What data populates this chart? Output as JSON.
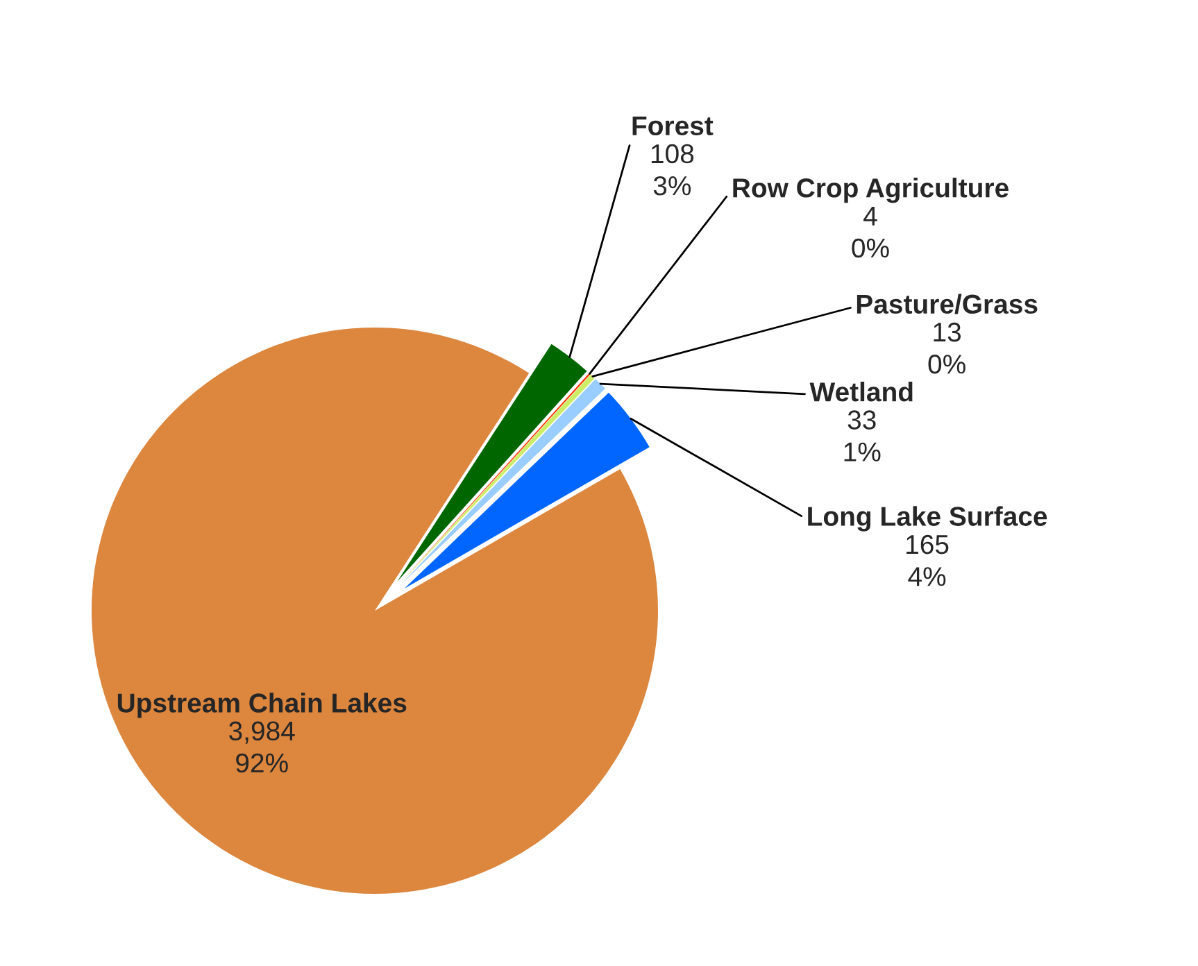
{
  "chart_data": {
    "type": "pie",
    "categories": [
      "Forest",
      "Row Crop Agriculture",
      "Pasture/Grass",
      "Wetland",
      "Long Lake Surface",
      "Upstream Chain Lakes"
    ],
    "values": [
      108,
      4,
      13,
      33,
      165,
      3984
    ],
    "value_labels": [
      "108\n3%",
      "4\n0%",
      "13\n0%",
      "33\n1%",
      "165\n4%",
      "3,984\n92%"
    ],
    "colors": [
      "#006600",
      "#ff3300",
      "#ccee66",
      "#99ccff",
      "#0066ff",
      "#dc863e"
    ],
    "legend": false
  }
}
